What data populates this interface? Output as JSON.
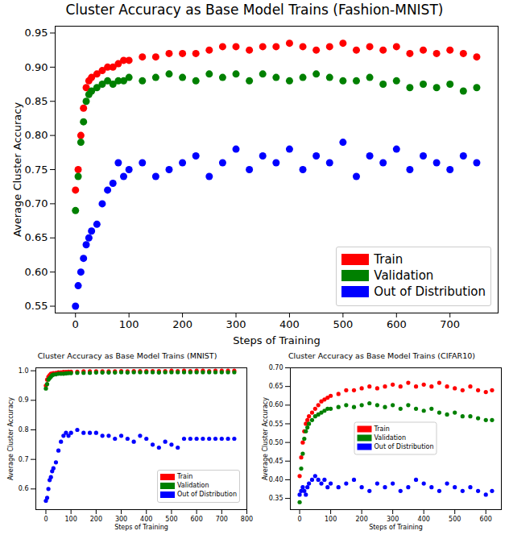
{
  "chart_data": [
    {
      "type": "scatter",
      "title": "Cluster Accuracy as Base Model Trains (Fashion-MNIST)",
      "x_label": "Steps of Training",
      "y_label": "Average Cluster Accuracy",
      "marker": "circle",
      "legend": "lower right",
      "grid": false,
      "xlim": [
        -38,
        790
      ],
      "ylim": [
        0.54,
        0.96
      ],
      "xticks": [
        0,
        100,
        200,
        300,
        400,
        500,
        600,
        700
      ],
      "yticks": [
        0.55,
        {
          "value": 0.6,
          "label": "0.60"
        },
        0.65,
        {
          "value": 0.7,
          "label": "0.70"
        },
        0.75,
        {
          "value": 0.8,
          "label": "0.80"
        },
        0.85,
        {
          "value": 0.9,
          "label": "0.90"
        },
        0.95
      ],
      "x": [
        0,
        5,
        10,
        15,
        20,
        25,
        30,
        40,
        50,
        60,
        70,
        80,
        90,
        100,
        125,
        150,
        175,
        200,
        225,
        250,
        275,
        300,
        325,
        350,
        375,
        400,
        425,
        450,
        475,
        500,
        525,
        550,
        575,
        600,
        625,
        650,
        675,
        700,
        725,
        750
      ],
      "series": [
        {
          "name": "Train",
          "color": "#ff0000",
          "values": [
            0.72,
            0.75,
            0.8,
            0.84,
            0.87,
            0.88,
            0.885,
            0.89,
            0.895,
            0.9,
            0.9,
            0.905,
            0.91,
            0.91,
            0.915,
            0.915,
            0.92,
            0.92,
            0.92,
            0.925,
            0.93,
            0.93,
            0.925,
            0.93,
            0.93,
            0.935,
            0.93,
            0.925,
            0.93,
            0.935,
            0.925,
            0.93,
            0.925,
            0.93,
            0.92,
            0.925,
            0.92,
            0.925,
            0.92,
            0.915
          ]
        },
        {
          "name": "Validation",
          "color": "#008000",
          "values": [
            0.69,
            0.74,
            0.79,
            0.82,
            0.85,
            0.86,
            0.865,
            0.87,
            0.875,
            0.88,
            0.875,
            0.88,
            0.88,
            0.885,
            0.88,
            0.885,
            0.89,
            0.885,
            0.88,
            0.89,
            0.885,
            0.89,
            0.88,
            0.89,
            0.885,
            0.88,
            0.885,
            0.89,
            0.885,
            0.88,
            0.88,
            0.885,
            0.875,
            0.88,
            0.87,
            0.875,
            0.87,
            0.875,
            0.865,
            0.87
          ]
        },
        {
          "name": "Out of Distribution",
          "color": "#0000ff",
          "values": [
            0.55,
            0.58,
            0.6,
            0.62,
            0.64,
            0.65,
            0.66,
            0.67,
            0.7,
            0.72,
            0.73,
            0.76,
            0.74,
            0.75,
            0.76,
            0.74,
            0.75,
            0.76,
            0.77,
            0.74,
            0.76,
            0.78,
            0.75,
            0.77,
            0.76,
            0.78,
            0.75,
            0.77,
            0.76,
            0.79,
            0.74,
            0.77,
            0.76,
            0.78,
            0.75,
            0.77,
            0.76,
            0.75,
            0.77,
            0.76
          ]
        }
      ]
    },
    {
      "type": "scatter",
      "title": "Cluster Accuracy as Base Model Trains (MNIST)",
      "x_label": "Steps of Training",
      "y_label": "Average Cluster Accuracy",
      "marker": "circle",
      "legend": "lower right",
      "grid": false,
      "xlim": [
        -40,
        800
      ],
      "ylim": [
        0.53,
        1.01
      ],
      "xticks": [
        0,
        100,
        200,
        300,
        400,
        500,
        600,
        700,
        800
      ],
      "yticks": [
        0.6,
        0.7,
        0.8,
        0.9,
        {
          "value": 1,
          "label": "1.0"
        }
      ],
      "x": [
        0,
        5,
        10,
        15,
        20,
        25,
        30,
        40,
        50,
        60,
        70,
        80,
        90,
        100,
        125,
        150,
        175,
        200,
        225,
        250,
        275,
        300,
        325,
        350,
        375,
        400,
        425,
        450,
        475,
        500,
        525,
        550,
        575,
        600,
        625,
        650,
        675,
        700,
        725,
        750
      ],
      "series": [
        {
          "name": "Train",
          "color": "#ff0000",
          "values": [
            0.95,
            0.97,
            0.98,
            0.985,
            0.99,
            0.99,
            0.992,
            0.993,
            0.995,
            0.995,
            0.996,
            0.996,
            0.997,
            0.997,
            0.997,
            0.998,
            0.998,
            0.998,
            0.998,
            0.998,
            0.998,
            0.999,
            0.998,
            0.999,
            0.999,
            0.999,
            0.999,
            0.999,
            0.999,
            1.0,
            0.999,
            1.0,
            0.999,
            1.0,
            1.0,
            0.999,
            1.0,
            1.0,
            1.0,
            1.0
          ]
        },
        {
          "name": "Validation",
          "color": "#008000",
          "values": [
            0.94,
            0.955,
            0.97,
            0.975,
            0.98,
            0.985,
            0.987,
            0.988,
            0.99,
            0.99,
            0.99,
            0.991,
            0.992,
            0.992,
            0.993,
            0.993,
            0.993,
            0.994,
            0.994,
            0.994,
            0.994,
            0.995,
            0.994,
            0.995,
            0.995,
            0.995,
            0.995,
            0.994,
            0.995,
            0.995,
            0.995,
            0.995,
            0.995,
            0.995,
            0.995,
            0.995,
            0.995,
            0.995,
            0.995,
            0.995
          ]
        },
        {
          "name": "Out of Distribution",
          "color": "#0000ff",
          "values": [
            0.56,
            0.57,
            0.6,
            0.63,
            0.64,
            0.66,
            0.67,
            0.69,
            0.73,
            0.76,
            0.78,
            0.79,
            0.78,
            0.79,
            0.8,
            0.79,
            0.79,
            0.79,
            0.78,
            0.78,
            0.77,
            0.78,
            0.77,
            0.76,
            0.78,
            0.77,
            0.75,
            0.74,
            0.76,
            0.75,
            0.74,
            0.77,
            0.77,
            0.77,
            0.77,
            0.77,
            0.77,
            0.77,
            0.77,
            0.77
          ]
        }
      ]
    },
    {
      "type": "scatter",
      "title": "Cluster Accuracy as Base Model Trains (CIFAR10)",
      "x_label": "Steps of Training",
      "y_label": "Average Cluster Accuracy",
      "marker": "circle",
      "legend": "center",
      "grid": false,
      "xlim": [
        -30,
        650
      ],
      "ylim": [
        0.32,
        0.7
      ],
      "xticks": [
        0,
        100,
        200,
        300,
        400,
        500,
        600
      ],
      "yticks": [
        0.35,
        {
          "value": 0.4,
          "label": "0.40"
        },
        0.45,
        {
          "value": 0.5,
          "label": "0.50"
        },
        0.55,
        {
          "value": 0.6,
          "label": "0.60"
        },
        0.65,
        {
          "value": 0.7,
          "label": "0.70"
        }
      ],
      "x": [
        0,
        5,
        10,
        15,
        20,
        25,
        30,
        40,
        50,
        60,
        70,
        80,
        90,
        100,
        125,
        150,
        175,
        200,
        225,
        250,
        275,
        300,
        325,
        350,
        375,
        400,
        425,
        450,
        475,
        500,
        525,
        550,
        575,
        600,
        620
      ],
      "series": [
        {
          "name": "Train",
          "color": "#ff0000",
          "values": [
            0.41,
            0.46,
            0.5,
            0.53,
            0.55,
            0.56,
            0.57,
            0.58,
            0.59,
            0.6,
            0.61,
            0.615,
            0.62,
            0.625,
            0.63,
            0.64,
            0.64,
            0.645,
            0.65,
            0.645,
            0.65,
            0.655,
            0.65,
            0.66,
            0.65,
            0.655,
            0.65,
            0.66,
            0.65,
            0.645,
            0.64,
            0.65,
            0.64,
            0.635,
            0.64
          ]
        },
        {
          "name": "Validation",
          "color": "#008000",
          "values": [
            0.34,
            0.43,
            0.47,
            0.51,
            0.53,
            0.54,
            0.55,
            0.56,
            0.57,
            0.575,
            0.58,
            0.585,
            0.59,
            0.59,
            0.595,
            0.6,
            0.595,
            0.6,
            0.605,
            0.6,
            0.595,
            0.6,
            0.59,
            0.6,
            0.59,
            0.585,
            0.59,
            0.58,
            0.575,
            0.58,
            0.57,
            0.57,
            0.565,
            0.56,
            0.56
          ]
        },
        {
          "name": "Out of Distribution",
          "color": "#0000ff",
          "values": [
            0.36,
            0.37,
            0.38,
            0.37,
            0.36,
            0.38,
            0.39,
            0.4,
            0.41,
            0.4,
            0.39,
            0.4,
            0.38,
            0.39,
            0.38,
            0.39,
            0.4,
            0.38,
            0.37,
            0.39,
            0.38,
            0.39,
            0.37,
            0.38,
            0.4,
            0.39,
            0.38,
            0.37,
            0.39,
            0.38,
            0.37,
            0.38,
            0.37,
            0.36,
            0.37
          ]
        }
      ]
    }
  ]
}
